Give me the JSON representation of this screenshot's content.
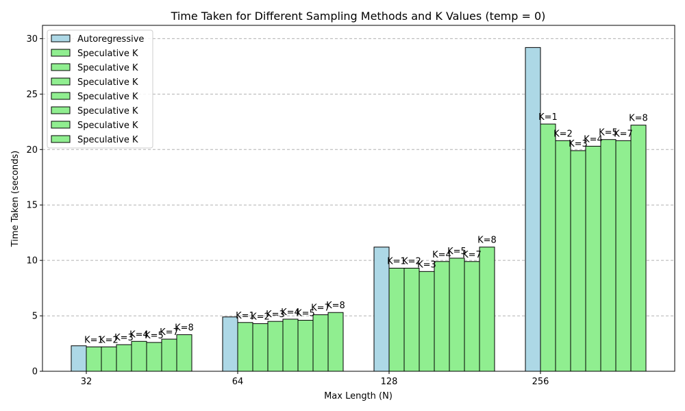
{
  "chart_data": {
    "type": "bar",
    "title": "Time Taken for Different Sampling Methods and K Values (temp = 0)",
    "xlabel": "Max Length (N)",
    "ylabel": "Time Taken (seconds)",
    "categories": [
      "32",
      "64",
      "128",
      "256"
    ],
    "ylim": [
      0,
      31.2
    ],
    "yticks": [
      0,
      5,
      10,
      15,
      20,
      25,
      30
    ],
    "grid": "y-dashed",
    "legend_position": "top-left",
    "series": [
      {
        "name": "Autoregressive",
        "bar_label": "",
        "color": "#add8e6",
        "values": [
          2.3,
          4.9,
          11.2,
          29.2
        ]
      },
      {
        "name": "Speculative K",
        "bar_label": "K=1",
        "color": "#90ee90",
        "values": [
          2.2,
          4.4,
          9.3,
          22.3
        ]
      },
      {
        "name": "Speculative K",
        "bar_label": "K=2",
        "color": "#90ee90",
        "values": [
          2.2,
          4.3,
          9.3,
          20.8
        ]
      },
      {
        "name": "Speculative K",
        "bar_label": "K=3",
        "color": "#90ee90",
        "values": [
          2.4,
          4.5,
          9.0,
          19.9
        ]
      },
      {
        "name": "Speculative K",
        "bar_label": "K=4",
        "color": "#90ee90",
        "values": [
          2.7,
          4.7,
          9.9,
          20.3
        ]
      },
      {
        "name": "Speculative K",
        "bar_label": "K=5",
        "color": "#90ee90",
        "values": [
          2.6,
          4.6,
          10.2,
          20.9
        ]
      },
      {
        "name": "Speculative K",
        "bar_label": "K=7",
        "color": "#90ee90",
        "values": [
          2.9,
          5.1,
          9.9,
          20.8
        ]
      },
      {
        "name": "Speculative K",
        "bar_label": "K=8",
        "color": "#90ee90",
        "values": [
          3.3,
          5.3,
          11.2,
          22.2
        ]
      }
    ]
  }
}
